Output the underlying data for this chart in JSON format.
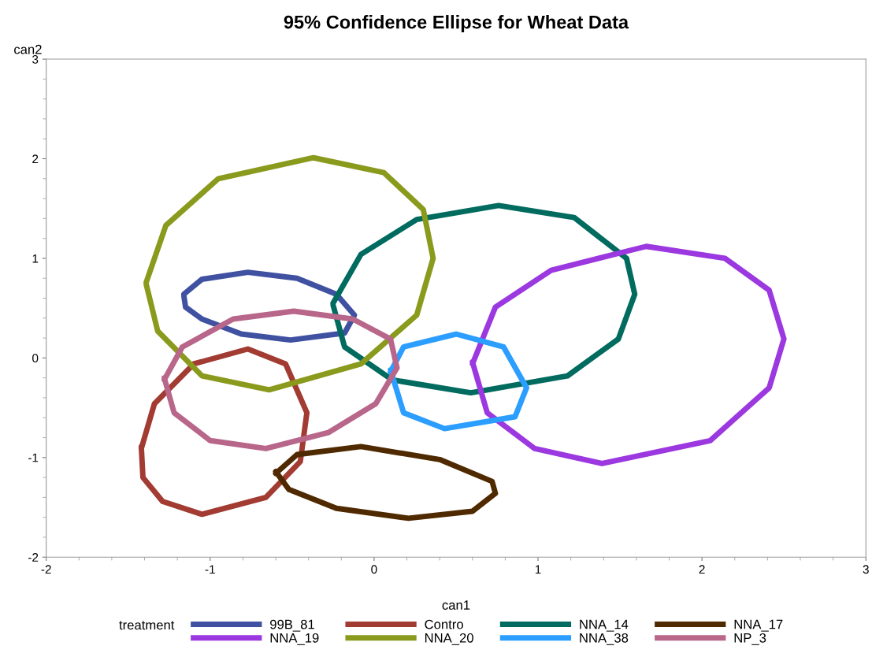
{
  "chart_data": {
    "type": "line",
    "title": "95% Confidence Ellipse for Wheat Data",
    "xlabel": "can1",
    "ylabel": "can2",
    "legend_title": "treatment",
    "legend": "bottom",
    "grid": false,
    "marker": "none",
    "line_style": "solid",
    "xlim": [
      -2,
      3
    ],
    "xticks": [
      -2,
      -1,
      0,
      1,
      2,
      3
    ],
    "ylim": [
      -2,
      3
    ],
    "yticks": [
      -2,
      -1,
      0,
      1,
      2,
      3
    ],
    "series": [
      {
        "name": "99B_81",
        "color": "#3f51a0",
        "x": [
          -1.16,
          -1.05,
          -0.77,
          -0.47,
          -0.23,
          -0.12,
          -0.18,
          -0.51,
          -0.81,
          -1.05,
          -1.15,
          -1.16
        ],
        "values": [
          0.64,
          0.79,
          0.86,
          0.8,
          0.64,
          0.43,
          0.25,
          0.18,
          0.24,
          0.39,
          0.51,
          0.62
        ]
      },
      {
        "name": "Contro",
        "color": "#a23b32",
        "x": [
          -1.42,
          -1.34,
          -1.1,
          -0.77,
          -0.54,
          -0.41,
          -0.45,
          -0.66,
          -1.05,
          -1.29,
          -1.41,
          -1.42
        ],
        "values": [
          -0.91,
          -0.46,
          -0.06,
          0.09,
          -0.06,
          -0.55,
          -1.04,
          -1.4,
          -1.57,
          -1.44,
          -1.2,
          -0.89
        ]
      },
      {
        "name": "NNA_14",
        "color": "#006b5e",
        "x": [
          -0.25,
          -0.08,
          0.26,
          0.76,
          1.22,
          1.54,
          1.59,
          1.49,
          1.18,
          0.59,
          0.11,
          -0.18,
          -0.25
        ],
        "values": [
          0.55,
          1.04,
          1.39,
          1.53,
          1.41,
          1.0,
          0.64,
          0.19,
          -0.18,
          -0.35,
          -0.22,
          0.11,
          0.53
        ]
      },
      {
        "name": "NNA_17",
        "color": "#4f2a00",
        "x": [
          -0.6,
          -0.47,
          -0.08,
          0.4,
          0.72,
          0.74,
          0.6,
          0.21,
          -0.23,
          -0.52,
          -0.6
        ],
        "values": [
          -1.16,
          -0.97,
          -0.89,
          -1.02,
          -1.24,
          -1.36,
          -1.54,
          -1.61,
          -1.51,
          -1.32,
          -1.14
        ]
      },
      {
        "name": "NNA_19",
        "color": "#9b38e0",
        "x": [
          0.6,
          0.74,
          1.08,
          1.66,
          2.14,
          2.41,
          2.5,
          2.41,
          2.05,
          1.39,
          0.98,
          0.69,
          0.6
        ],
        "values": [
          -0.06,
          0.51,
          0.88,
          1.12,
          1.0,
          0.68,
          0.19,
          -0.3,
          -0.83,
          -1.06,
          -0.91,
          -0.55,
          -0.04
        ]
      },
      {
        "name": "NNA_20",
        "color": "#8a9a1c",
        "x": [
          -1.39,
          -1.27,
          -0.95,
          -0.37,
          0.06,
          0.3,
          0.36,
          0.26,
          -0.08,
          -0.64,
          -1.05,
          -1.32,
          -1.39
        ],
        "values": [
          0.76,
          1.33,
          1.8,
          2.01,
          1.86,
          1.49,
          1.0,
          0.43,
          -0.06,
          -0.32,
          -0.18,
          0.27,
          0.74
        ]
      },
      {
        "name": "NNA_38",
        "color": "#2b9eff",
        "x": [
          0.1,
          0.18,
          0.5,
          0.79,
          0.93,
          0.86,
          0.43,
          0.18,
          0.1
        ],
        "values": [
          -0.14,
          0.11,
          0.24,
          0.11,
          -0.3,
          -0.59,
          -0.71,
          -0.55,
          -0.12
        ]
      },
      {
        "name": "NP_3",
        "color": "#b8668a",
        "x": [
          -1.28,
          -1.17,
          -0.86,
          -0.49,
          -0.13,
          0.1,
          0.14,
          0.01,
          -0.28,
          -0.66,
          -1.0,
          -1.22,
          -1.28
        ],
        "values": [
          -0.22,
          0.11,
          0.39,
          0.47,
          0.39,
          0.19,
          -0.1,
          -0.46,
          -0.75,
          -0.91,
          -0.83,
          -0.55,
          -0.2
        ]
      }
    ]
  }
}
